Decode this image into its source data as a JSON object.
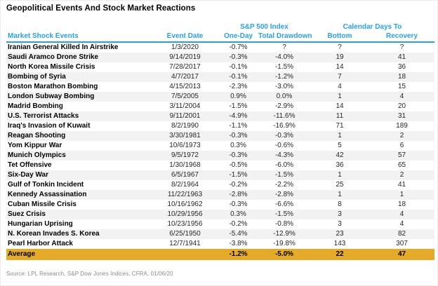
{
  "title": "Geopolitical Events And Stock Market Reactions",
  "source": "Source: LPL Research, S&P Dow Jones Indices, CFRA, 01/06/20",
  "colors": {
    "header_blue": "#2B9FD9",
    "average_gold": "#E5AB28",
    "row_stripe": "#F2F2F2"
  },
  "chart_data": {
    "type": "table",
    "title": "Geopolitical Events And Stock Market Reactions",
    "column_groups": {
      "sp500": "S&P 500 Index",
      "calendar": "Calendar Days To"
    },
    "columns": [
      "Market Shock Events",
      "Event Date",
      "One-Day",
      "Total Drawdown",
      "Bottom",
      "Recovery"
    ],
    "rows": [
      {
        "event": "Iranian General Killed In Airstrike",
        "date": "1/3/2020",
        "one_day": "-0.7%",
        "total_drawdown": "?",
        "bottom": "?",
        "recovery": "?"
      },
      {
        "event": "Saudi Aramco Drone Strike",
        "date": "9/14/2019",
        "one_day": "-0.3%",
        "total_drawdown": "-4.0%",
        "bottom": "19",
        "recovery": "41"
      },
      {
        "event": "North Korea Missile Crisis",
        "date": "7/28/2017",
        "one_day": "-0.1%",
        "total_drawdown": "-1.5%",
        "bottom": "14",
        "recovery": "36"
      },
      {
        "event": "Bombing of Syria",
        "date": "4/7/2017",
        "one_day": "-0.1%",
        "total_drawdown": "-1.2%",
        "bottom": "7",
        "recovery": "18"
      },
      {
        "event": "Boston Marathon Bombing",
        "date": "4/15/2013",
        "one_day": "-2.3%",
        "total_drawdown": "-3.0%",
        "bottom": "4",
        "recovery": "15"
      },
      {
        "event": "London Subway Bombing",
        "date": "7/5/2005",
        "one_day": "0.9%",
        "total_drawdown": "0.0%",
        "bottom": "1",
        "recovery": "4"
      },
      {
        "event": "Madrid Bombing",
        "date": "3/11/2004",
        "one_day": "-1.5%",
        "total_drawdown": "-2.9%",
        "bottom": "14",
        "recovery": "20"
      },
      {
        "event": "U.S. Terrorist Attacks",
        "date": "9/11/2001",
        "one_day": "-4.9%",
        "total_drawdown": "-11.6%",
        "bottom": "11",
        "recovery": "31"
      },
      {
        "event": "Iraq's Invasion of Kuwait",
        "date": "8/2/1990",
        "one_day": "-1.1%",
        "total_drawdown": "-16.9%",
        "bottom": "71",
        "recovery": "189"
      },
      {
        "event": "Reagan Shooting",
        "date": "3/30/1981",
        "one_day": "-0.3%",
        "total_drawdown": "-0.3%",
        "bottom": "1",
        "recovery": "2"
      },
      {
        "event": "Yom Kippur War",
        "date": "10/6/1973",
        "one_day": "0.3%",
        "total_drawdown": "-0.6%",
        "bottom": "5",
        "recovery": "6"
      },
      {
        "event": "Munich Olympics",
        "date": "9/5/1972",
        "one_day": "-0.3%",
        "total_drawdown": "-4.3%",
        "bottom": "42",
        "recovery": "57"
      },
      {
        "event": "Tet Offensive",
        "date": "1/30/1968",
        "one_day": "-0.5%",
        "total_drawdown": "-6.0%",
        "bottom": "36",
        "recovery": "65"
      },
      {
        "event": "Six-Day War",
        "date": "6/5/1967",
        "one_day": "-1.5%",
        "total_drawdown": "-1.5%",
        "bottom": "1",
        "recovery": "2"
      },
      {
        "event": "Gulf of Tonkin Incident",
        "date": "8/2/1964",
        "one_day": "-0.2%",
        "total_drawdown": "-2.2%",
        "bottom": "25",
        "recovery": "41"
      },
      {
        "event": "Kennedy Assassination",
        "date": "11/22/1963",
        "one_day": "-2.8%",
        "total_drawdown": "-2.8%",
        "bottom": "1",
        "recovery": "1"
      },
      {
        "event": "Cuban Missile Crisis",
        "date": "10/16/1962",
        "one_day": "-0.3%",
        "total_drawdown": "-6.6%",
        "bottom": "8",
        "recovery": "18"
      },
      {
        "event": "Suez Crisis",
        "date": "10/29/1956",
        "one_day": "0.3%",
        "total_drawdown": "-1.5%",
        "bottom": "3",
        "recovery": "4"
      },
      {
        "event": "Hungarian Uprising",
        "date": "10/23/1956",
        "one_day": "-0.2%",
        "total_drawdown": "-0.8%",
        "bottom": "3",
        "recovery": "4"
      },
      {
        "event": "N. Korean Invades S. Korea",
        "date": "6/25/1950",
        "one_day": "-5.4%",
        "total_drawdown": "-12.9%",
        "bottom": "23",
        "recovery": "82"
      },
      {
        "event": "Pearl Harbor Attack",
        "date": "12/7/1941",
        "one_day": "-3.8%",
        "total_drawdown": "-19.8%",
        "bottom": "143",
        "recovery": "307"
      }
    ],
    "average": {
      "event": "Average",
      "date": "",
      "one_day": "-1.2%",
      "total_drawdown": "-5.0%",
      "bottom": "22",
      "recovery": "47"
    }
  }
}
